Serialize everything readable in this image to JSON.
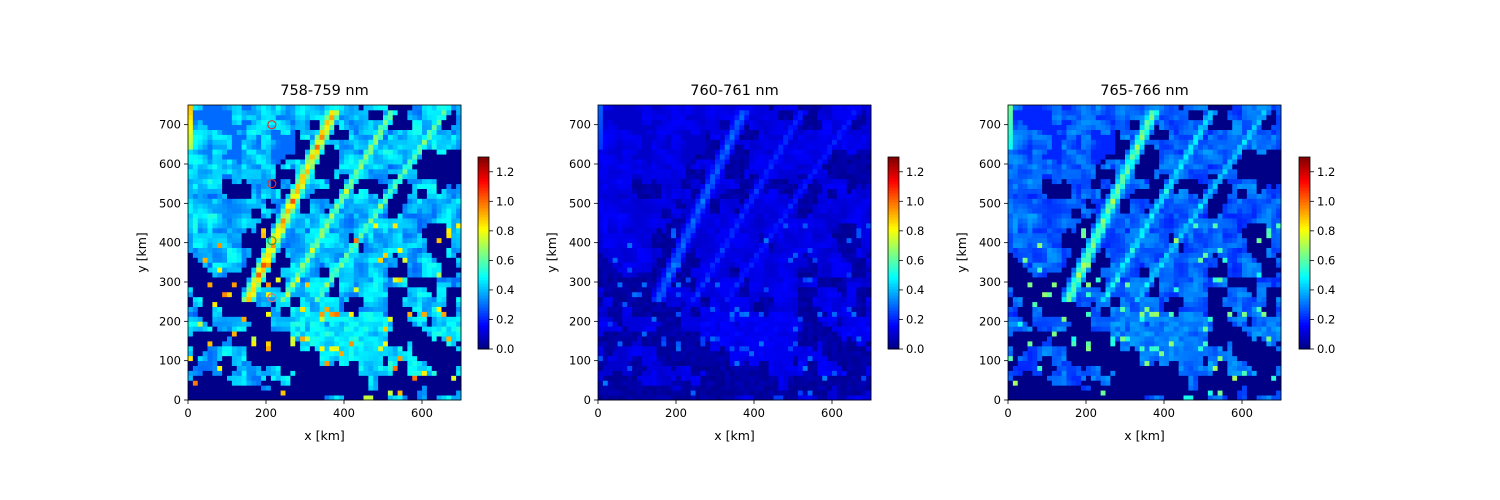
{
  "chart_data": [
    {
      "type": "heatmap",
      "title": "758-759 nm",
      "xlabel": "x [km]",
      "ylabel": "y [km]",
      "xlim": [
        0,
        700
      ],
      "ylim": [
        0,
        750
      ],
      "xticks": [
        "0",
        "200",
        "400",
        "600"
      ],
      "yticks": [
        "0",
        "100",
        "200",
        "300",
        "400",
        "500",
        "600",
        "700"
      ],
      "colormap": "jet",
      "colorbar": {
        "min": 0.0,
        "max": 1.3,
        "ticks": [
          "0.0",
          "0.2",
          "0.4",
          "0.6",
          "0.8",
          "1.0",
          "1.2"
        ]
      },
      "field": {
        "scale": 1.0,
        "background": 0.25
      },
      "markers": [
        {
          "x": 215,
          "y": 700,
          "color": "#e03030"
        },
        {
          "x": 215,
          "y": 550,
          "color": "#e03030"
        },
        {
          "x": 215,
          "y": 405,
          "color": "#30a030"
        },
        {
          "x": 215,
          "y": 260,
          "color": "#e07070"
        }
      ]
    },
    {
      "type": "heatmap",
      "title": "760-761 nm",
      "xlabel": "x [km]",
      "ylabel": "y [km]",
      "xlim": [
        0,
        700
      ],
      "ylim": [
        0,
        750
      ],
      "xticks": [
        "0",
        "200",
        "400",
        "600"
      ],
      "yticks": [
        "0",
        "100",
        "200",
        "300",
        "400",
        "500",
        "600",
        "700"
      ],
      "colormap": "jet",
      "colorbar": {
        "min": 0.0,
        "max": 1.3,
        "ticks": [
          "0.0",
          "0.2",
          "0.4",
          "0.6",
          "0.8",
          "1.0",
          "1.2"
        ]
      },
      "field": {
        "scale": 0.32,
        "background": 0.03
      },
      "markers": []
    },
    {
      "type": "heatmap",
      "title": "765-766 nm",
      "xlabel": "x [km]",
      "ylabel": "y [km]",
      "xlim": [
        0,
        700
      ],
      "ylim": [
        0,
        750
      ],
      "xticks": [
        "0",
        "200",
        "400",
        "600"
      ],
      "yticks": [
        "0",
        "100",
        "200",
        "300",
        "400",
        "500",
        "600",
        "700"
      ],
      "colormap": "jet",
      "colorbar": {
        "min": 0.0,
        "max": 1.3,
        "ticks": [
          "0.0",
          "0.2",
          "0.4",
          "0.6",
          "0.8",
          "1.0",
          "1.2"
        ]
      },
      "field": {
        "scale": 0.7,
        "background": 0.17
      },
      "markers": []
    }
  ]
}
